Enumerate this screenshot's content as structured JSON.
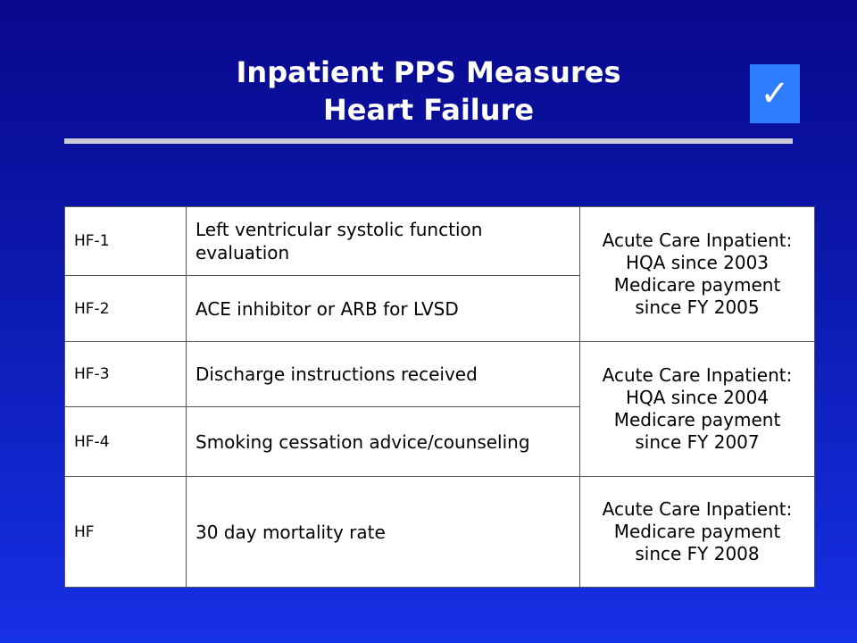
{
  "header": {
    "title_line1": "Inpatient PPS Measures",
    "title_line2": "Heart Failure",
    "check_icon": "checkmark-icon"
  },
  "table": {
    "rows": [
      {
        "id": "HF-1",
        "measure": "Left ventricular systolic function evaluation"
      },
      {
        "id": "HF-2",
        "measure": "ACE inhibitor or ARB for LVSD"
      },
      {
        "id": "HF-3",
        "measure": "Discharge instructions received"
      },
      {
        "id": "HF-4",
        "measure": "Smoking cessation advice/counseling"
      },
      {
        "id": "HF",
        "measure": "30 day mortality rate"
      }
    ],
    "status_groups": [
      {
        "line1": "Acute Care Inpatient:",
        "line2": "HQA since 2003",
        "line3": "Medicare payment",
        "line4": "since FY 2005"
      },
      {
        "line1": "Acute Care Inpatient:",
        "line2": "HQA since 2004",
        "line3": "Medicare payment",
        "line4": "since FY 2007"
      },
      {
        "line1": "Acute Care Inpatient:",
        "line2": "Medicare payment",
        "line3": "since FY 2008"
      }
    ]
  }
}
